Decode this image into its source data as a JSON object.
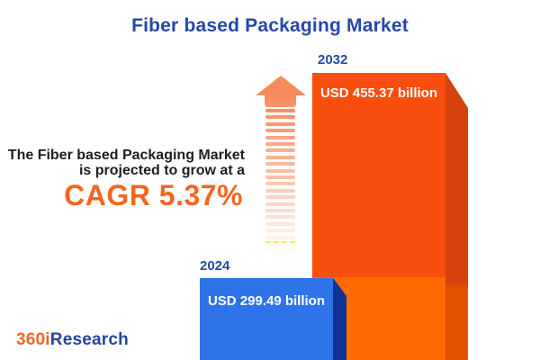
{
  "title": "Fiber based Packaging Market",
  "description": {
    "line1": "The Fiber based Packaging Market",
    "line2": "is projected to grow at a",
    "cagr": "CAGR 5.37%"
  },
  "bars": {
    "b2024": {
      "year": "2024",
      "value_label": "USD 299.49 billion"
    },
    "b2032": {
      "year": "2032",
      "value_label": "USD 455.37 billion"
    }
  },
  "logo": {
    "part1": "360i",
    "part2": "Research"
  },
  "icons": {
    "growth_arrow": "up-arrow-fading-stripes"
  },
  "chart_data": {
    "type": "bar",
    "title": "Fiber based Packaging Market",
    "categories": [
      "2024",
      "2032"
    ],
    "values": [
      299.49,
      455.37
    ],
    "unit": "USD billion",
    "value_labels": [
      "USD 299.49 billion",
      "USD 455.37 billion"
    ],
    "cagr_percent": 5.37,
    "annotations": [
      "The Fiber based Packaging Market is projected to grow at a CAGR 5.37%"
    ],
    "legend": "none",
    "grid": false,
    "bar_colors": {
      "2024": "#2f73e8",
      "2032": "#f94e0d"
    }
  },
  "colors": {
    "title_blue": "#2548ab",
    "accent_orange": "#f4661f",
    "text_dark": "#1e1e1e",
    "bar_2024_front": "#2f73e8",
    "bar_2024_side": "#0d3394",
    "bar_2032_front_top": "#f94e0d",
    "bar_2032_front_bottom": "#fd6a02",
    "bar_2032_side_top": "#d5430e",
    "bar_2032_side_bottom": "#e05300",
    "arrow_orange": "#f68b5d",
    "logo_orange": "#f26522",
    "logo_blue": "#26459e",
    "value_text_white": "#ffffff"
  }
}
